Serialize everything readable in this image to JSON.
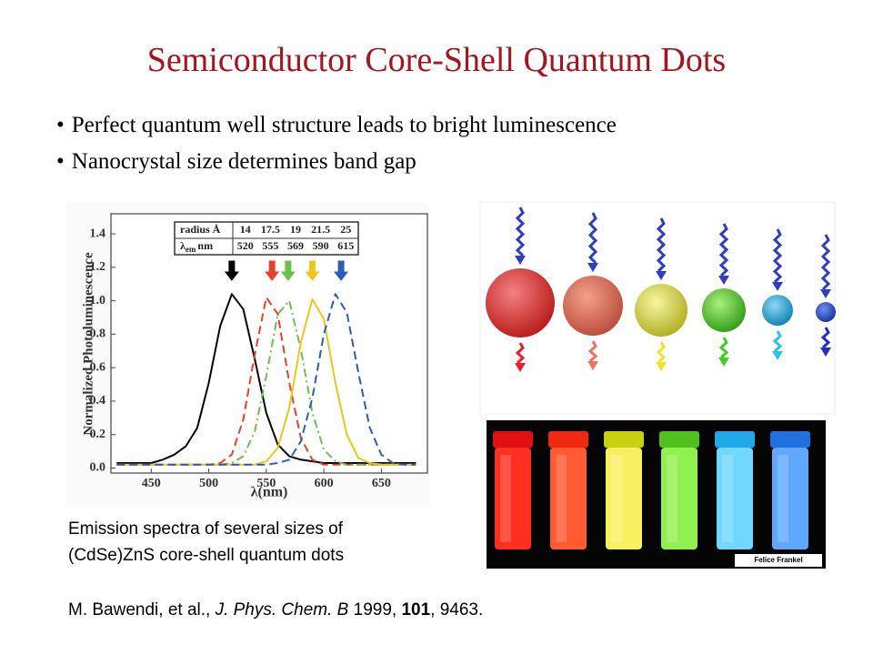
{
  "title": "Semiconductor Core-Shell Quantum Dots",
  "bullets": [
    "Perfect quantum well structure leads to bright luminescence",
    "Nanocrystal size determines band gap"
  ],
  "chart_data": {
    "type": "line",
    "y_label": "Normalized Photoluminescence",
    "x_label": "λ(nm)",
    "x": [
      420,
      430,
      440,
      450,
      460,
      470,
      480,
      490,
      500,
      510,
      520,
      530,
      540,
      550,
      560,
      570,
      580,
      590,
      600,
      610,
      620,
      630,
      640,
      650,
      660,
      670,
      680
    ],
    "series": [
      {
        "color": "#000000",
        "style": "solid",
        "values": [
          0.03,
          0.03,
          0.03,
          0.03,
          0.05,
          0.08,
          0.13,
          0.24,
          0.51,
          0.85,
          1.04,
          0.95,
          0.65,
          0.33,
          0.14,
          0.07,
          0.05,
          0.04,
          0.03,
          0.03,
          0.03,
          0.03,
          0.03,
          0.03,
          0.03,
          0.03,
          0.03
        ]
      },
      {
        "color": "#e8402a",
        "style": "dashed",
        "values": [
          0.02,
          0.02,
          0.02,
          0.02,
          0.02,
          0.02,
          0.02,
          0.02,
          0.02,
          0.03,
          0.08,
          0.29,
          0.68,
          1.02,
          0.92,
          0.51,
          0.18,
          0.05,
          0.02,
          0.02,
          0.02,
          0.02,
          0.02,
          0.02,
          0.02,
          0.02,
          0.02
        ]
      },
      {
        "color": "#6cc04a",
        "style": "dashdot",
        "values": [
          0.02,
          0.02,
          0.02,
          0.02,
          0.02,
          0.02,
          0.02,
          0.02,
          0.02,
          0.02,
          0.03,
          0.07,
          0.22,
          0.55,
          0.92,
          1.0,
          0.71,
          0.33,
          0.11,
          0.04,
          0.02,
          0.02,
          0.02,
          0.02,
          0.02,
          0.02,
          0.02
        ]
      },
      {
        "color": "#f2c41a",
        "style": "solid",
        "values": [
          0.02,
          0.02,
          0.02,
          0.02,
          0.02,
          0.02,
          0.02,
          0.02,
          0.02,
          0.02,
          0.02,
          0.02,
          0.02,
          0.04,
          0.12,
          0.36,
          0.75,
          1.01,
          0.89,
          0.51,
          0.2,
          0.06,
          0.03,
          0.02,
          0.02,
          0.02,
          0.02
        ]
      },
      {
        "color": "#2a5cb8",
        "style": "dashed",
        "values": [
          0.02,
          0.02,
          0.02,
          0.02,
          0.02,
          0.02,
          0.02,
          0.02,
          0.02,
          0.02,
          0.02,
          0.02,
          0.02,
          0.02,
          0.03,
          0.05,
          0.16,
          0.42,
          0.8,
          1.04,
          0.93,
          0.57,
          0.24,
          0.08,
          0.03,
          0.02,
          0.02
        ]
      }
    ],
    "xlim": [
      415,
      690
    ],
    "ylim": [
      -0.03,
      1.52
    ],
    "xticks": [
      450,
      500,
      550,
      600,
      650
    ],
    "yticks": [
      {
        "value": 0,
        "label": "0.0"
      },
      {
        "value": 0.2,
        "label": "0.2"
      },
      {
        "value": 0.4,
        "label": "0.4"
      },
      {
        "value": 0.6,
        "label": "0.6"
      },
      {
        "value": 0.8,
        "label": "0.8"
      },
      {
        "value": 1.0,
        "label": "1.0"
      },
      {
        "value": 1.2,
        "label": "1.2"
      },
      {
        "value": 1.4,
        "label": "1.4"
      }
    ],
    "inset": {
      "radius_label": "radius Å",
      "wavelength_label": {
        "symbol": "λ",
        "sub": "em",
        "unit": "nm"
      },
      "radius": [
        14,
        17.5,
        19,
        21.5,
        25
      ],
      "wavelength": [
        520,
        555,
        569,
        590,
        615
      ]
    }
  },
  "caption": [
    "Emission spectra of several sizes of",
    "(CdSe)ZnS core-shell quantum dots"
  ],
  "photo_credit": "Felice Frankel",
  "citation": [
    "M. Bawendi, et al., ",
    "J. Phys. Chem. B",
    " 1999, ",
    "101",
    ", 9463."
  ]
}
